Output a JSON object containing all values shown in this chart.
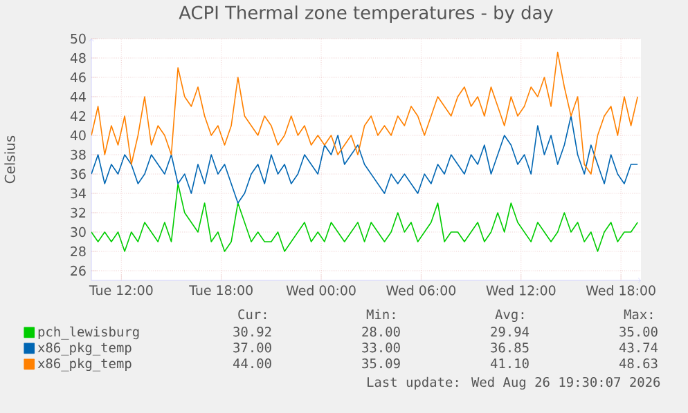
{
  "chart_data": {
    "type": "line",
    "title": "ACPI Thermal zone temperatures - by day",
    "ylabel": "Celsius",
    "x": [
      "2026-08-25T10:12",
      "2026-08-25T10:36",
      "2026-08-25T11:00",
      "2026-08-25T11:24",
      "2026-08-25T11:48",
      "2026-08-25T12:12",
      "2026-08-25T12:36",
      "2026-08-25T13:00",
      "2026-08-25T13:24",
      "2026-08-25T13:48",
      "2026-08-25T14:12",
      "2026-08-25T14:36",
      "2026-08-25T15:00",
      "2026-08-25T15:24",
      "2026-08-25T15:48",
      "2026-08-25T16:12",
      "2026-08-25T16:36",
      "2026-08-25T17:00",
      "2026-08-25T17:24",
      "2026-08-25T17:48",
      "2026-08-25T18:12",
      "2026-08-25T18:36",
      "2026-08-25T19:00",
      "2026-08-25T19:24",
      "2026-08-25T19:48",
      "2026-08-25T20:12",
      "2026-08-25T20:36",
      "2026-08-25T21:00",
      "2026-08-25T21:24",
      "2026-08-25T21:48",
      "2026-08-25T22:12",
      "2026-08-25T22:36",
      "2026-08-25T23:00",
      "2026-08-25T23:24",
      "2026-08-25T23:48",
      "2026-08-26T00:12",
      "2026-08-26T00:36",
      "2026-08-26T01:00",
      "2026-08-26T01:24",
      "2026-08-26T01:48",
      "2026-08-26T02:12",
      "2026-08-26T02:36",
      "2026-08-26T03:00",
      "2026-08-26T03:24",
      "2026-08-26T03:48",
      "2026-08-26T04:12",
      "2026-08-26T04:36",
      "2026-08-26T05:00",
      "2026-08-26T05:24",
      "2026-08-26T05:48",
      "2026-08-26T06:12",
      "2026-08-26T06:36",
      "2026-08-26T07:00",
      "2026-08-26T07:24",
      "2026-08-26T07:48",
      "2026-08-26T08:12",
      "2026-08-26T08:36",
      "2026-08-26T09:00",
      "2026-08-26T09:24",
      "2026-08-26T09:48",
      "2026-08-26T10:12",
      "2026-08-26T10:36",
      "2026-08-26T11:00",
      "2026-08-26T11:24",
      "2026-08-26T11:48",
      "2026-08-26T12:12",
      "2026-08-26T12:36",
      "2026-08-26T13:00",
      "2026-08-26T13:24",
      "2026-08-26T13:48",
      "2026-08-26T14:12",
      "2026-08-26T14:36",
      "2026-08-26T15:00",
      "2026-08-26T15:24",
      "2026-08-26T15:48",
      "2026-08-26T16:12",
      "2026-08-26T16:36",
      "2026-08-26T17:00",
      "2026-08-26T17:24",
      "2026-08-26T17:48",
      "2026-08-26T18:12",
      "2026-08-26T18:36",
      "2026-08-26T19:00"
    ],
    "series": [
      {
        "name": "pch_lewisburg",
        "color": "#00cc00",
        "values": [
          30,
          29,
          30,
          29,
          30,
          28,
          30,
          29,
          31,
          30,
          29,
          31,
          29,
          35,
          32,
          31,
          30,
          33,
          29,
          30,
          28,
          29,
          33,
          31,
          29,
          30,
          29,
          29,
          30,
          28,
          29,
          30,
          31,
          29,
          30,
          29,
          31,
          30,
          29,
          30,
          31,
          29,
          31,
          30,
          29,
          30,
          32,
          30,
          31,
          29,
          30,
          31,
          33,
          29,
          30,
          30,
          29,
          30,
          31,
          29,
          30,
          32,
          30,
          33,
          31,
          30,
          29,
          31,
          30,
          29,
          30,
          32,
          30,
          31,
          29,
          30,
          28,
          30,
          31,
          29,
          30,
          30,
          31
        ]
      },
      {
        "name": "x86_pkg_temp",
        "color": "#0066b3",
        "values": [
          36,
          38,
          35,
          37,
          36,
          38,
          37,
          35,
          36,
          38,
          37,
          36,
          38,
          35,
          36,
          34,
          37,
          35,
          38,
          36,
          37,
          35,
          33,
          34,
          36,
          37,
          35,
          38,
          36,
          37,
          35,
          36,
          38,
          37,
          36,
          39,
          38,
          40,
          37,
          38,
          39,
          37,
          36,
          35,
          34,
          36,
          35,
          36,
          35,
          34,
          36,
          35,
          37,
          36,
          38,
          37,
          36,
          38,
          37,
          39,
          36,
          38,
          40,
          39,
          37,
          38,
          36,
          41,
          38,
          40,
          37,
          39,
          42,
          38,
          36,
          39,
          37,
          35,
          38,
          36,
          35,
          37,
          37
        ]
      },
      {
        "name": "x86_pkg_temp",
        "color": "#ff8000",
        "values": [
          40,
          43,
          38,
          41,
          39,
          42,
          37,
          40,
          44,
          39,
          41,
          40,
          38,
          47,
          44,
          43,
          45,
          42,
          40,
          41,
          39,
          41,
          46,
          42,
          41,
          40,
          42,
          41,
          39,
          40,
          42,
          40,
          41,
          39,
          40,
          39,
          40,
          38,
          39,
          40,
          38,
          41,
          42,
          40,
          41,
          40,
          42,
          41,
          43,
          42,
          40,
          42,
          44,
          43,
          42,
          44,
          45,
          43,
          44,
          42,
          45,
          43,
          41,
          44,
          42,
          43,
          45,
          44,
          46,
          43,
          48.6,
          45,
          42,
          44,
          37,
          36,
          40,
          42,
          43,
          40,
          44,
          41,
          44
        ]
      }
    ],
    "xlim": [
      "2026-08-25T10:12",
      "2026-08-26T19:12"
    ],
    "xticks": [
      {
        "value": "2026-08-25T12:00",
        "label": "Tue 12:00"
      },
      {
        "value": "2026-08-25T18:00",
        "label": "Tue 18:00"
      },
      {
        "value": "2026-08-26T00:00",
        "label": "Wed 00:00"
      },
      {
        "value": "2026-08-26T06:00",
        "label": "Wed 06:00"
      },
      {
        "value": "2026-08-26T12:00",
        "label": "Wed 12:00"
      },
      {
        "value": "2026-08-26T18:00",
        "label": "Wed 18:00"
      }
    ],
    "ylim": [
      25,
      50
    ],
    "yticks": [
      26,
      28,
      30,
      32,
      34,
      36,
      38,
      40,
      42,
      44,
      46,
      48,
      50
    ],
    "grid": true,
    "legend": "bottom",
    "marker": "none",
    "line_style": "solid",
    "annotations": [
      "Cur:",
      "Min:",
      "Avg:",
      "Max:",
      "30.92",
      "28.00",
      "29.94",
      "35.00",
      "37.00",
      "33.00",
      "36.85",
      "43.74",
      "44.00",
      "35.09",
      "41.10",
      "48.63",
      "Last update: Wed Aug 26 19:30:07 2026"
    ]
  }
}
